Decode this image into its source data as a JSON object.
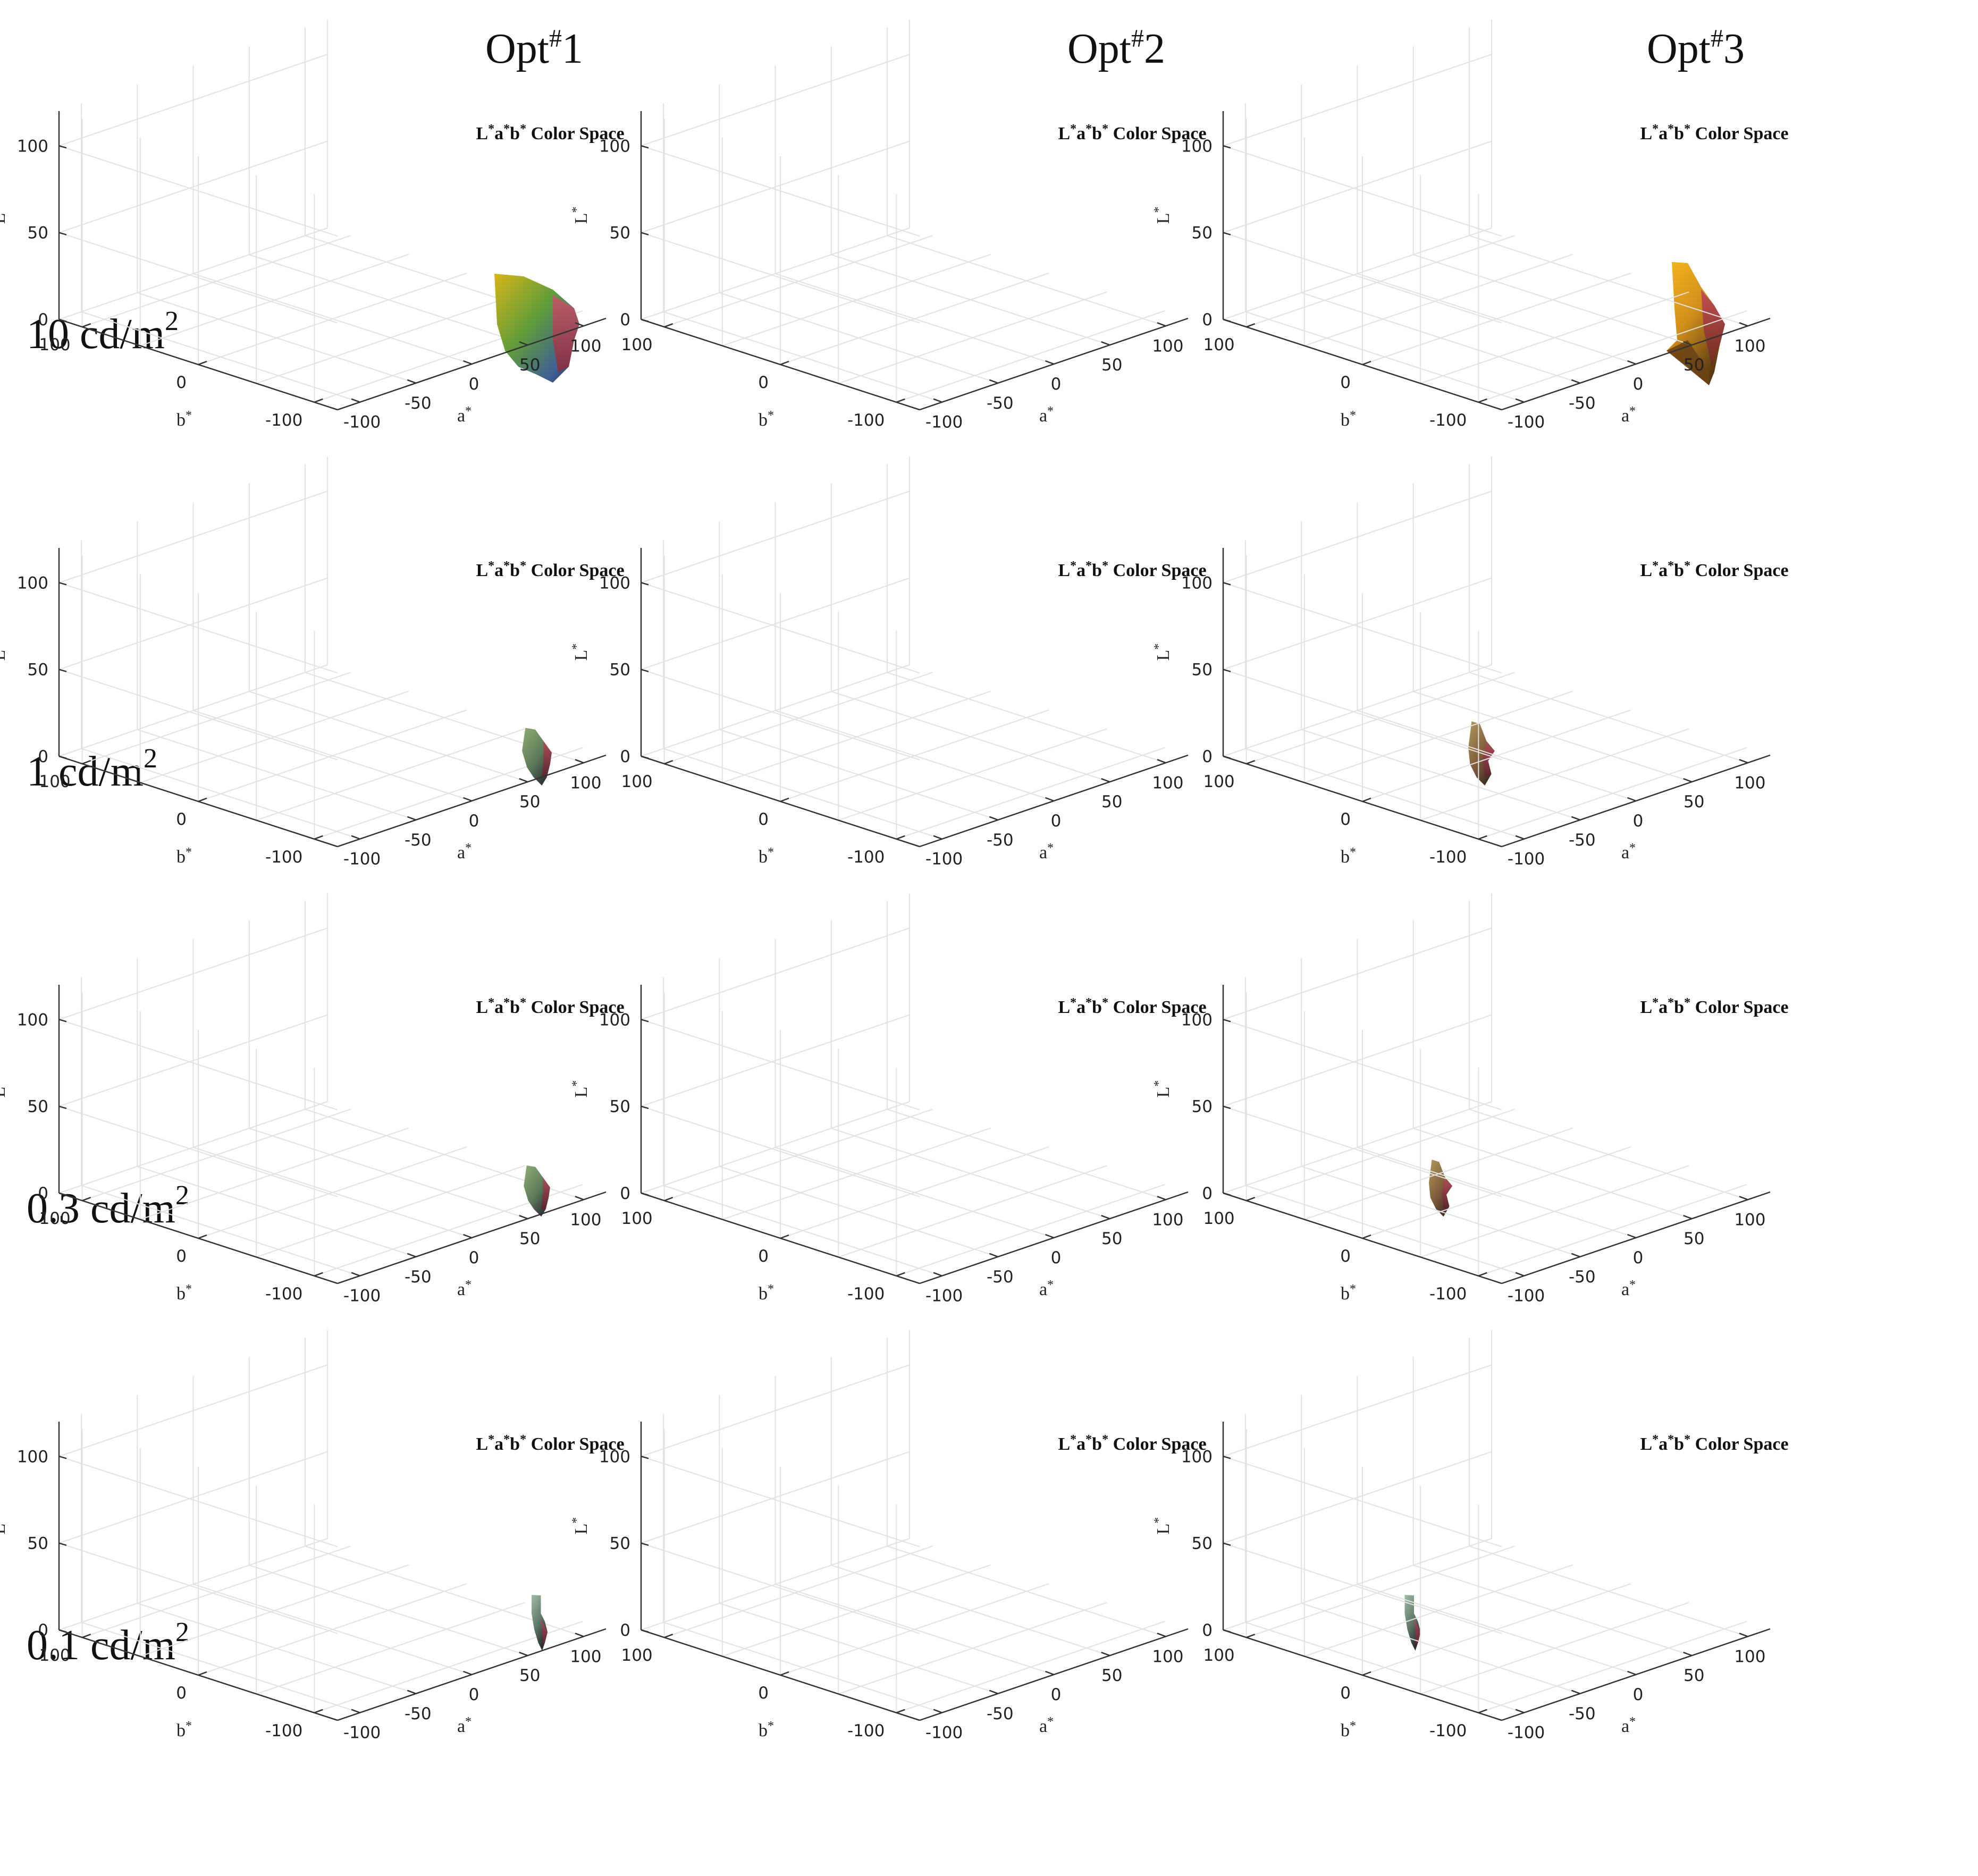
{
  "chart_data": {
    "type": "3d-surface-grid",
    "columns": [
      {
        "label": "Opt",
        "sup": "#",
        "num": "1"
      },
      {
        "label": "Opt",
        "sup": "#",
        "num": "2"
      },
      {
        "label": "Opt",
        "sup": "#",
        "num": "3"
      }
    ],
    "rows": [
      {
        "label": "10 cd/m",
        "sup": "2"
      },
      {
        "label": "1 cd/m",
        "sup": "2"
      },
      {
        "label": "0.3 cd/m",
        "sup": "2"
      },
      {
        "label": "0.1 cd/m",
        "sup": "2"
      }
    ],
    "subplot_title": {
      "l": "L",
      "a": "a",
      "b": "b",
      "star": "*",
      "rest": " Color Space"
    },
    "axes": {
      "L": {
        "label": "L",
        "sup": "*",
        "range": [
          0,
          120
        ],
        "ticks": [
          "0",
          "50",
          "100"
        ]
      },
      "a": {
        "label": "a",
        "sup": "*",
        "range": [
          -120,
          120
        ],
        "ticks": [
          "-100",
          "-50",
          "0",
          "50",
          "100"
        ]
      },
      "b": {
        "label": "b",
        "sup": "*",
        "range": [
          -120,
          120
        ],
        "ticks": [
          "100",
          "0",
          "-100"
        ]
      }
    },
    "gamut_colors": {
      "yellow": "#d4b01c",
      "orange": "#e89b1a",
      "green": "#4f9b3a",
      "teal": "#10a083",
      "red": "#c63b4a",
      "blue": "#3e5f96",
      "dark": "#2e2e3a",
      "gray_green": "#8fae92",
      "brown": "#8a5a2a"
    }
  }
}
